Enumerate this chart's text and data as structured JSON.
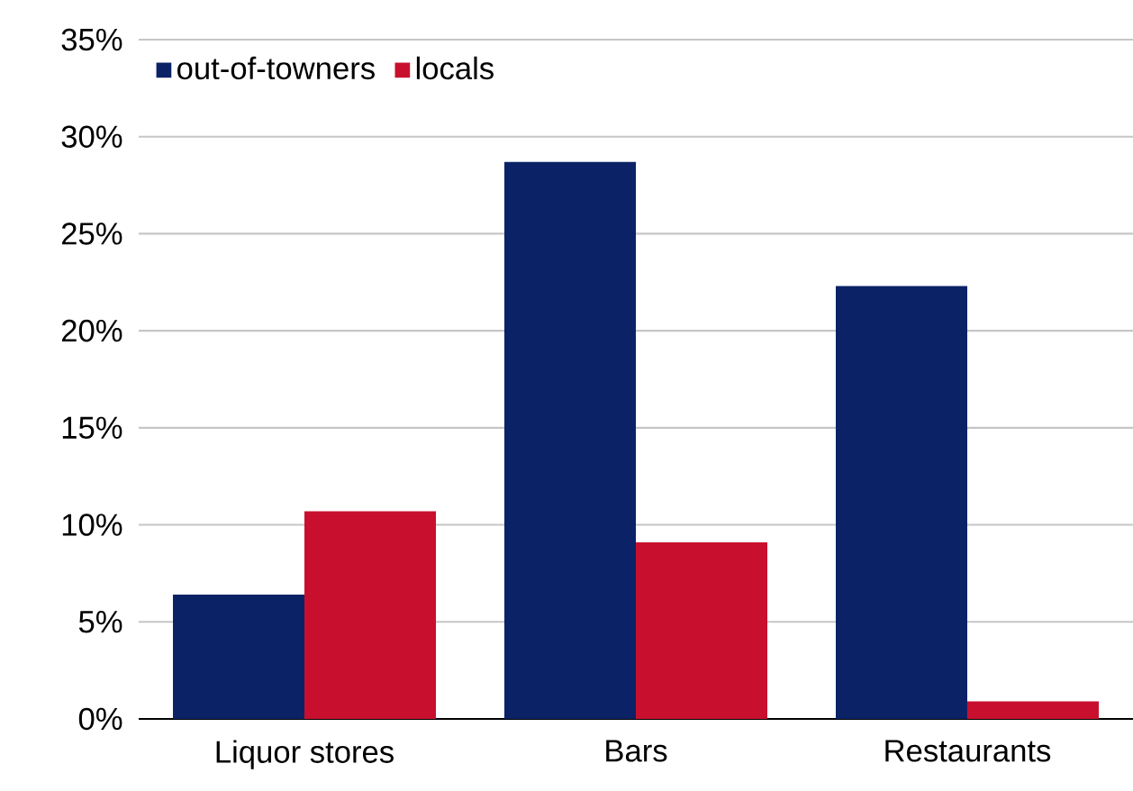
{
  "chart_data": {
    "type": "bar",
    "categories": [
      "Liquor stores",
      "Bars",
      "Restaurants"
    ],
    "series": [
      {
        "name": "out-of-towners",
        "color": "#0c2266",
        "values": [
          6.4,
          28.7,
          22.3
        ]
      },
      {
        "name": "locals",
        "color": "#c8102e",
        "values": [
          10.7,
          9.1,
          0.9
        ]
      }
    ],
    "ylim": [
      0,
      35
    ],
    "yticks": [
      {
        "value": 0,
        "label": "0%"
      },
      {
        "value": 5,
        "label": "5%"
      },
      {
        "value": 10,
        "label": "10%"
      },
      {
        "value": 15,
        "label": "15%"
      },
      {
        "value": 20,
        "label": "20%"
      },
      {
        "value": 25,
        "label": "25%"
      },
      {
        "value": 30,
        "label": "30%"
      },
      {
        "value": 35,
        "label": "35%"
      }
    ],
    "grid": "y",
    "legend": "top left"
  }
}
